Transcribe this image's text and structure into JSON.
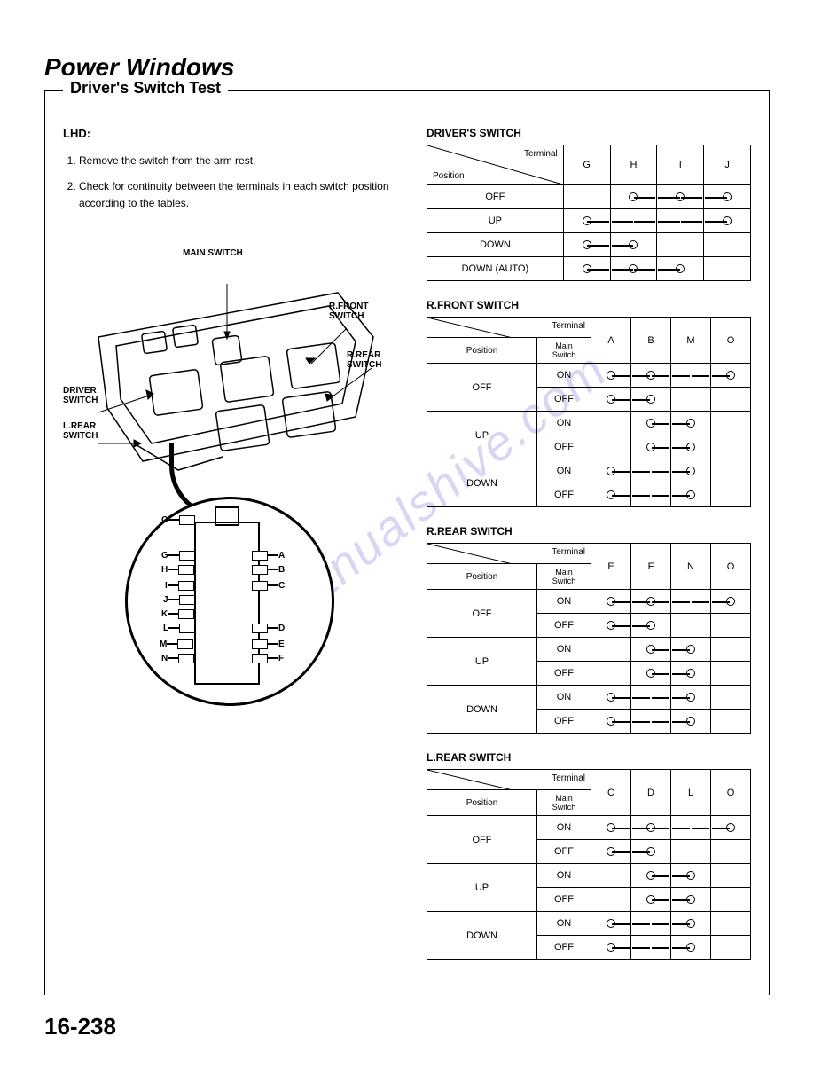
{
  "page": {
    "title": "Power Windows",
    "section": "Driver's Switch Test",
    "lhd_label": "LHD:",
    "steps": [
      "Remove the switch from the arm rest.",
      "Check for continuity between the terminals in each switch position according to the tables."
    ],
    "page_number": "16-238",
    "watermark": "manualshive.com"
  },
  "diagram": {
    "labels": {
      "main_switch": "MAIN SWITCH",
      "r_front_switch": "R.FRONT\nSWITCH",
      "r_rear_switch": "R.REAR\nSWITCH",
      "driver_switch": "DRIVER\nSWITCH",
      "l_rear_switch": "L.REAR\nSWITCH"
    },
    "connector_pins_left": [
      "O",
      "G",
      "H",
      "I",
      "J",
      "K",
      "L",
      "M",
      "N"
    ],
    "connector_pins_right": [
      "A",
      "B",
      "C",
      "D",
      "E",
      "F"
    ]
  },
  "tables": {
    "header_terminal": "Terminal",
    "header_position": "Position",
    "header_main_switch": "Main\nSwitch",
    "drivers": {
      "title": "DRIVER'S SWITCH",
      "columns": [
        "G",
        "H",
        "I",
        "J"
      ],
      "rows": [
        {
          "pos": "OFF",
          "conn": [
            [
              1,
              2
            ],
            [
              2,
              3
            ]
          ]
        },
        {
          "pos": "UP",
          "conn": [
            [
              0,
              3
            ]
          ]
        },
        {
          "pos": "DOWN",
          "conn": [
            [
              0,
              1
            ]
          ]
        },
        {
          "pos": "DOWN (AUTO)",
          "conn": [
            [
              0,
              1
            ],
            [
              1,
              2
            ]
          ]
        }
      ]
    },
    "r_front": {
      "title": "R.FRONT SWITCH",
      "columns": [
        "A",
        "B",
        "M",
        "O"
      ],
      "rows": [
        {
          "pos": "OFF",
          "sub": "ON",
          "conn": [
            [
              0,
              1
            ],
            [
              1,
              3
            ]
          ]
        },
        {
          "pos": "",
          "sub": "OFF",
          "conn": [
            [
              0,
              1
            ]
          ]
        },
        {
          "pos": "UP",
          "sub": "ON",
          "conn": [
            [
              1,
              2
            ]
          ]
        },
        {
          "pos": "",
          "sub": "OFF",
          "conn": [
            [
              1,
              2
            ]
          ]
        },
        {
          "pos": "DOWN",
          "sub": "ON",
          "conn": [
            [
              0,
              2
            ]
          ]
        },
        {
          "pos": "",
          "sub": "OFF",
          "conn": [
            [
              0,
              2
            ]
          ]
        }
      ]
    },
    "r_rear": {
      "title": "R.REAR SWITCH",
      "columns": [
        "E",
        "F",
        "N",
        "O"
      ],
      "rows": [
        {
          "pos": "OFF",
          "sub": "ON",
          "conn": [
            [
              0,
              1
            ],
            [
              1,
              3
            ]
          ]
        },
        {
          "pos": "",
          "sub": "OFF",
          "conn": [
            [
              0,
              1
            ]
          ]
        },
        {
          "pos": "UP",
          "sub": "ON",
          "conn": [
            [
              1,
              2
            ]
          ]
        },
        {
          "pos": "",
          "sub": "OFF",
          "conn": [
            [
              1,
              2
            ]
          ]
        },
        {
          "pos": "DOWN",
          "sub": "ON",
          "conn": [
            [
              0,
              2
            ]
          ]
        },
        {
          "pos": "",
          "sub": "OFF",
          "conn": [
            [
              0,
              2
            ]
          ]
        }
      ]
    },
    "l_rear": {
      "title": "L.REAR SWITCH",
      "columns": [
        "C",
        "D",
        "L",
        "O"
      ],
      "rows": [
        {
          "pos": "OFF",
          "sub": "ON",
          "conn": [
            [
              0,
              1
            ],
            [
              1,
              3
            ]
          ]
        },
        {
          "pos": "",
          "sub": "OFF",
          "conn": [
            [
              0,
              1
            ]
          ]
        },
        {
          "pos": "UP",
          "sub": "ON",
          "conn": [
            [
              1,
              2
            ]
          ]
        },
        {
          "pos": "",
          "sub": "OFF",
          "conn": [
            [
              1,
              2
            ]
          ]
        },
        {
          "pos": "DOWN",
          "sub": "ON",
          "conn": [
            [
              0,
              2
            ]
          ]
        },
        {
          "pos": "",
          "sub": "OFF",
          "conn": [
            [
              0,
              2
            ]
          ]
        }
      ]
    }
  },
  "style": {
    "text_color": "#000000",
    "bg_color": "#ffffff",
    "watermark_color": "#9090e0",
    "border_color": "#000000",
    "font_main": "Arial"
  }
}
